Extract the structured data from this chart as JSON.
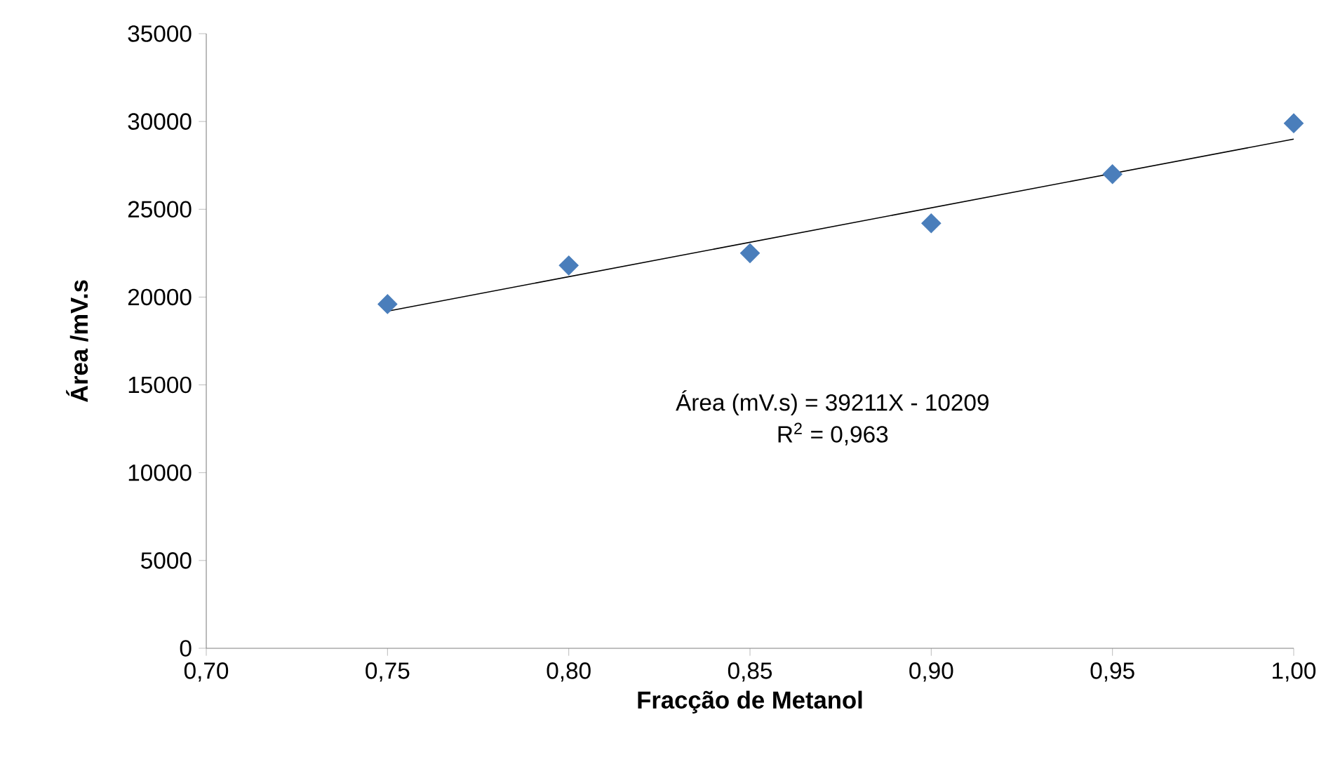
{
  "chart_data": {
    "type": "scatter",
    "xlabel": "Fracção de Metanol",
    "ylabel": "Área /mV.s",
    "x": [
      0.75,
      0.8,
      0.85,
      0.9,
      0.95,
      1.0
    ],
    "series": [
      {
        "color": "#4a7ebb",
        "marker": "diamond",
        "values": [
          19600,
          21800,
          22500,
          24200,
          27000,
          29900
        ]
      },
      {
        "type": "line",
        "color": "#000000",
        "marker": "none",
        "line_style": "solid",
        "x": [
          0.75,
          1.0
        ],
        "values": [
          19200,
          29000
        ]
      }
    ],
    "xlim": [
      0.7,
      1.0
    ],
    "ylim": [
      0,
      35000
    ],
    "xticks": [
      {
        "value": 0.7,
        "label": "0,70"
      },
      {
        "value": 0.75,
        "label": "0,75"
      },
      {
        "value": 0.8,
        "label": "0,80"
      },
      {
        "value": 0.85,
        "label": "0,85"
      },
      {
        "value": 0.9,
        "label": "0,90"
      },
      {
        "value": 0.95,
        "label": "0,95"
      },
      {
        "value": 1.0,
        "label": "1,00"
      }
    ],
    "yticks": [
      0,
      5000,
      10000,
      15000,
      20000,
      25000,
      30000,
      35000
    ],
    "annotations": [
      "Área (mV.s) = 39211X - 10209",
      "R$^{2}$ = 0,963"
    ],
    "grid": false
  }
}
